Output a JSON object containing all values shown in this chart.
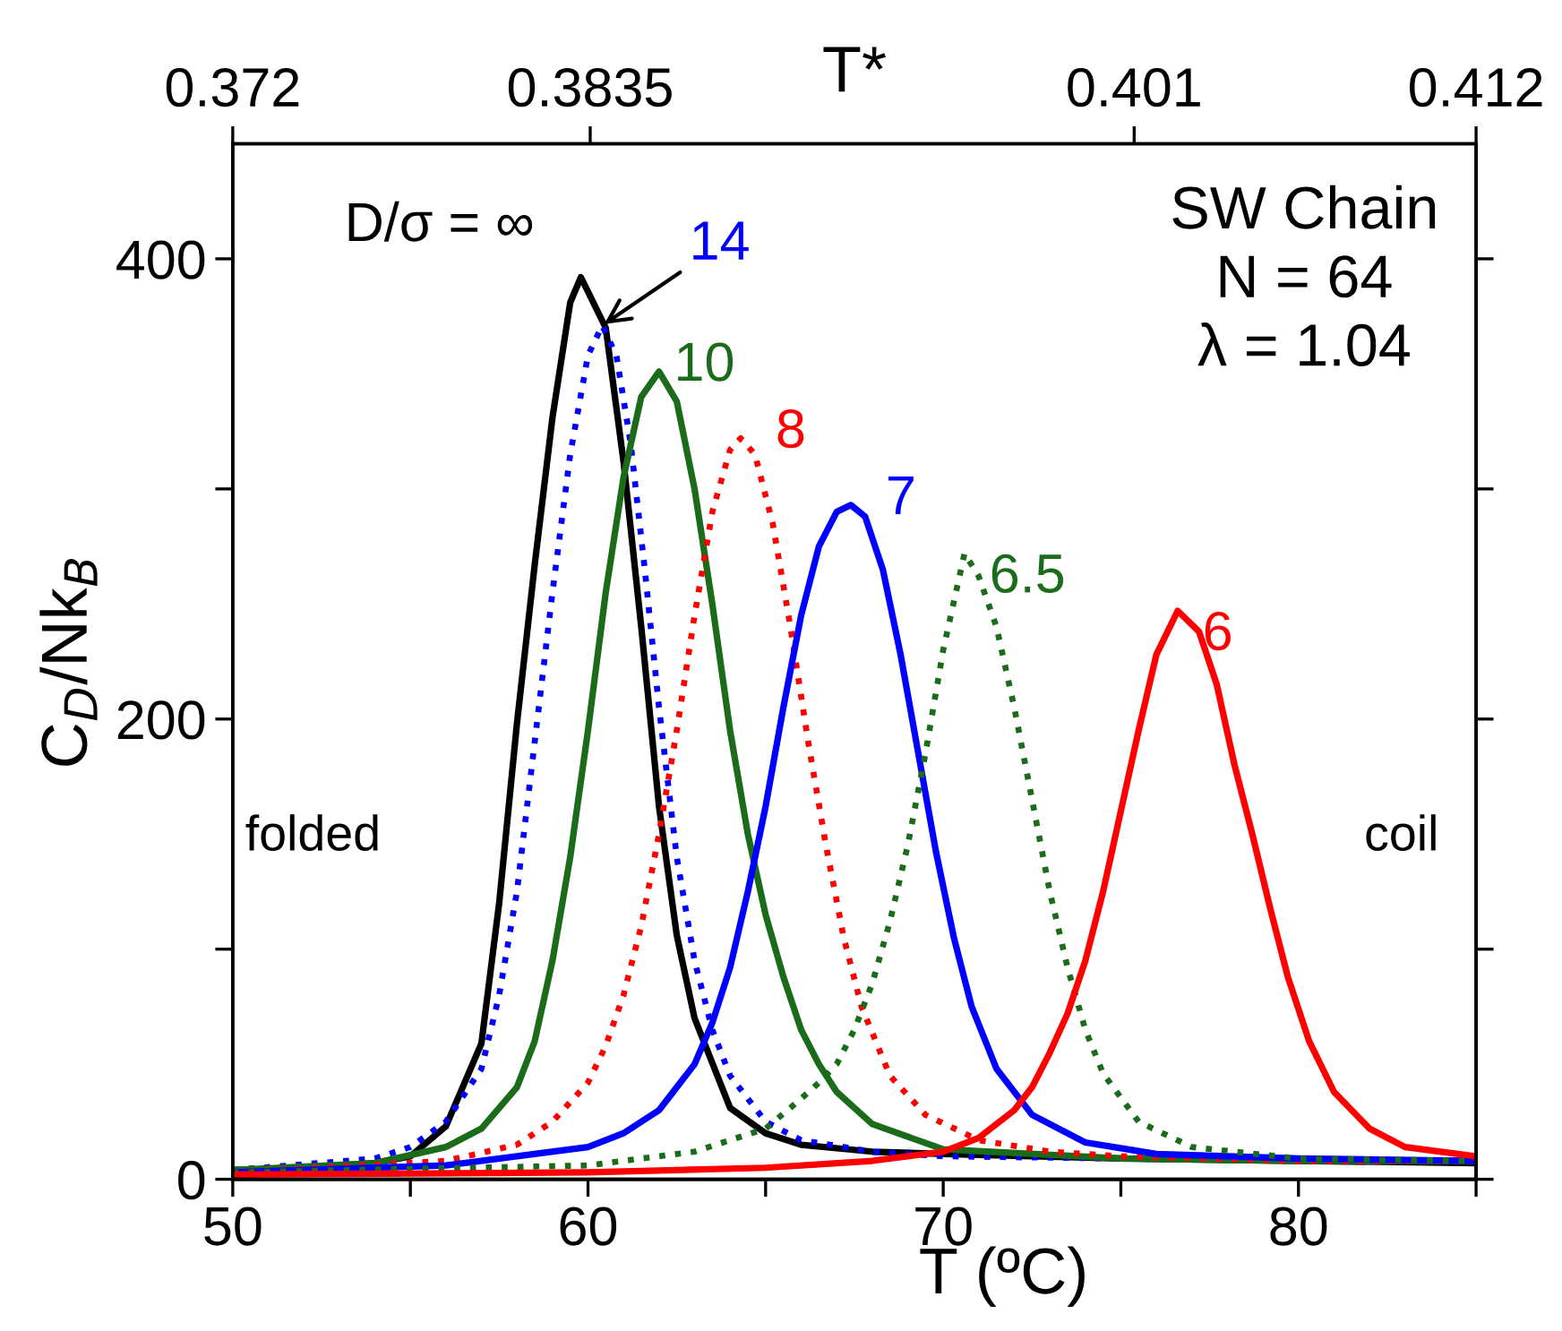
{
  "chart_data": {
    "type": "line",
    "xlabel": "T (ºC)",
    "ylabel": "C$_{D}$/Nk$_{B}$",
    "x2label": "T*",
    "xlim": [
      50,
      85
    ],
    "xticks": [
      50,
      {
        "value": 55,
        "label": null
      },
      60,
      {
        "value": 65,
        "label": null
      },
      70,
      {
        "value": 75,
        "label": null
      },
      80,
      {
        "value": 85,
        "label": null
      }
    ],
    "ylim": [
      0,
      450
    ],
    "yticks": [
      0,
      {
        "value": 100,
        "label": null
      },
      200,
      {
        "value": 300,
        "label": null
      },
      400
    ],
    "x2lim": [
      0.372,
      0.412
    ],
    "x2ticks": [
      0.372,
      0.3835,
      0.401,
      0.412
    ],
    "grid": false,
    "legend": false,
    "annotations": [
      "SW Chain\nN = 64\nλ = 1.04",
      "folded",
      "coil"
    ],
    "series": [
      {
        "name": "D/σ = ∞",
        "color": "#000000",
        "line_style": "solid",
        "x": [
          50,
          52,
          54,
          55,
          56,
          57,
          57.5,
          58,
          58.5,
          59,
          59.5,
          59.8,
          60.5,
          61,
          61.5,
          62,
          62.5,
          63,
          64,
          65,
          66,
          68,
          70,
          75,
          80,
          85
        ],
        "values": [
          4,
          5,
          7,
          10,
          23,
          59,
          120,
          198,
          267,
          331,
          381,
          392,
          370,
          312,
          240,
          162,
          106,
          70,
          31,
          20,
          15,
          12,
          11,
          9,
          8,
          7
        ]
      },
      {
        "name": "14",
        "color": "#0000ff",
        "line_style": "dotted",
        "x": [
          50,
          54,
          55,
          56,
          57,
          57.5,
          58,
          58.5,
          59,
          59.5,
          60,
          60.4,
          60.8,
          61.2,
          61.6,
          62,
          62.5,
          63,
          63.5,
          64,
          65,
          66,
          68,
          70,
          75,
          80,
          85
        ],
        "values": [
          4,
          9,
          14,
          25,
          48,
          80,
          125,
          190,
          255,
          315,
          358,
          371,
          358,
          320,
          265,
          205,
          140,
          95,
          65,
          45,
          25,
          17,
          12,
          10,
          9,
          8,
          8
        ]
      },
      {
        "name": "10",
        "color": "#1a6b1a",
        "line_style": "solid",
        "x": [
          50,
          54,
          56,
          57,
          58,
          58.5,
          59,
          59.5,
          60,
          60.5,
          61,
          61.5,
          62,
          62.5,
          63,
          63.5,
          64,
          64.5,
          65,
          65.5,
          66,
          66.5,
          67,
          68,
          70,
          75,
          80,
          85
        ],
        "values": [
          4,
          7,
          14,
          22,
          40,
          60,
          95,
          140,
          195,
          255,
          305,
          340,
          351,
          338,
          300,
          250,
          195,
          150,
          115,
          88,
          65,
          50,
          38,
          24,
          13,
          9,
          8,
          8
        ]
      },
      {
        "name": "8",
        "color": "#ff0000",
        "line_style": "dotted",
        "x": [
          50,
          56,
          58,
          59,
          60,
          60.5,
          61,
          61.5,
          62,
          62.5,
          63,
          63.5,
          64,
          64.3,
          64.7,
          65.2,
          65.7,
          66.2,
          66.7,
          67.2,
          67.7,
          68.5,
          69.5,
          71,
          73,
          75,
          80,
          85
        ],
        "values": [
          3,
          8,
          15,
          25,
          42,
          58,
          80,
          110,
          150,
          195,
          245,
          290,
          317,
          322,
          315,
          285,
          240,
          190,
          145,
          105,
          75,
          45,
          28,
          17,
          12,
          10,
          8,
          8
        ]
      },
      {
        "name": "7",
        "color": "#0000ff",
        "line_style": "solid",
        "x": [
          50,
          56,
          60,
          61,
          62,
          63,
          63.5,
          64,
          64.5,
          65,
          65.5,
          66,
          66.5,
          67,
          67.4,
          67.8,
          68.3,
          68.8,
          69.3,
          69.8,
          70.3,
          70.8,
          71.5,
          72.5,
          74,
          76,
          80,
          85
        ],
        "values": [
          3,
          6,
          14,
          20,
          30,
          50,
          68,
          92,
          125,
          162,
          205,
          245,
          275,
          290,
          293,
          288,
          265,
          228,
          185,
          142,
          105,
          75,
          48,
          28,
          16,
          11,
          9,
          8
        ]
      },
      {
        "name": "6.5",
        "color": "#1a6b1a",
        "line_style": "dotted",
        "x": [
          50,
          60,
          63,
          65,
          66,
          66.5,
          67,
          67.5,
          68,
          68.5,
          69,
          69.5,
          70,
          70.6,
          71,
          71.5,
          72,
          72.5,
          73,
          73.5,
          74,
          74.5,
          75.5,
          77,
          80,
          85
        ],
        "values": [
          3,
          6,
          12,
          22,
          35,
          42,
          50,
          65,
          85,
          112,
          145,
          185,
          230,
          272,
          262,
          240,
          205,
          165,
          125,
          92,
          65,
          46,
          25,
          14,
          9,
          8
        ]
      },
      {
        "name": "6",
        "color": "#ff0000",
        "line_style": "solid",
        "x": [
          50,
          60,
          65,
          68,
          70,
          71,
          72,
          72.5,
          73,
          73.5,
          74,
          74.5,
          75,
          75.5,
          76,
          76.6,
          77.2,
          77.7,
          78.2,
          78.7,
          79.2,
          79.7,
          80.3,
          81,
          82,
          83,
          85
        ],
        "values": [
          2,
          3,
          5,
          8,
          12,
          18,
          30,
          40,
          55,
          72,
          95,
          125,
          160,
          195,
          228,
          247,
          238,
          215,
          180,
          150,
          118,
          88,
          60,
          38,
          22,
          14,
          10
        ]
      }
    ]
  }
}
